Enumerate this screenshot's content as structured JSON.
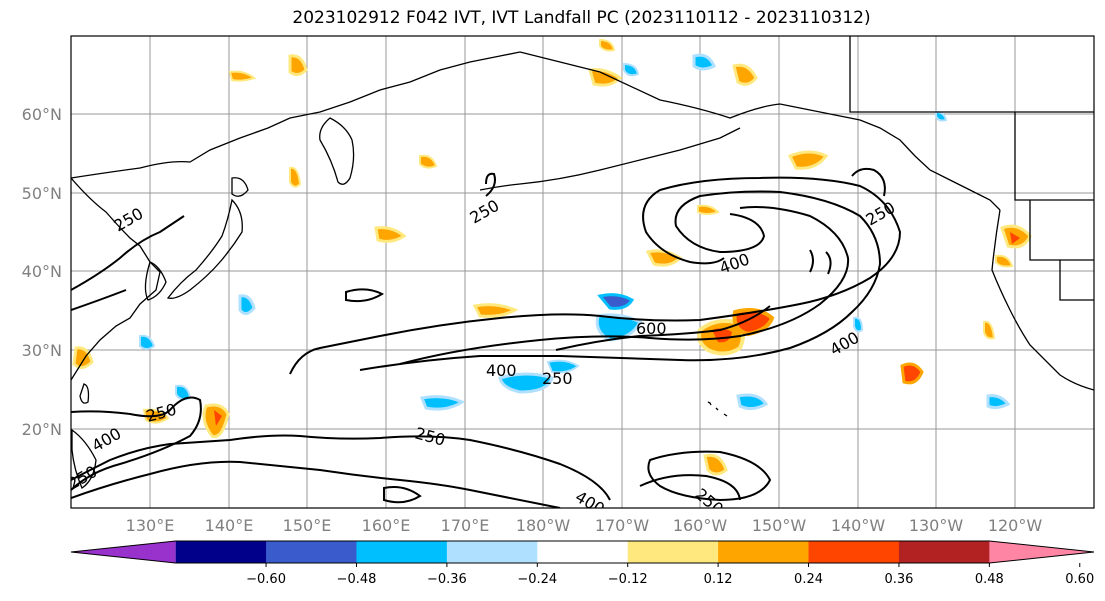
{
  "title": "2023102912 F042 IVT, IVT Landfall PC (2023110112 - 2023110312)",
  "lat_labels": [
    "60°N",
    "50°N",
    "40°N",
    "30°N",
    "20°N"
  ],
  "lon_labels": [
    "130°E",
    "140°E",
    "150°E",
    "160°E",
    "170°E",
    "180°W",
    "170°W",
    "160°W",
    "150°W",
    "140°W",
    "130°W",
    "120°W"
  ],
  "contour_labels": [
    "250",
    "250",
    "250",
    "250",
    "400",
    "400",
    "400",
    "400",
    "600",
    "250",
    "250",
    "250",
    "400",
    "250"
  ],
  "colorbar": {
    "colors": [
      "#9932cc",
      "#00008b",
      "#3a5bcc",
      "#00bfff",
      "#b0e0ff",
      "#ffffff",
      "#ffe97f",
      "#ffa500",
      "#ff4500",
      "#b22222",
      "#ff85a5"
    ],
    "tick_labels": [
      "−0.60",
      "−0.48",
      "−0.36",
      "−0.24",
      "−0.12",
      "0.12",
      "0.24",
      "0.36",
      "0.48",
      "0.60"
    ]
  },
  "chart_data": {
    "type": "heatmap",
    "title": "2023102912 F042 IVT, IVT Landfall PC (2023110112 - 2023110312)",
    "lat_range": [
      10,
      70
    ],
    "lon_range_east": [
      120,
      250
    ],
    "contour_levels": [
      250,
      400,
      600
    ],
    "colorbar_levels": [
      -0.6,
      -0.48,
      -0.36,
      -0.24,
      -0.12,
      0.12,
      0.24,
      0.36,
      0.48,
      0.6
    ],
    "colorbar_extend": "both",
    "grid": true
  }
}
